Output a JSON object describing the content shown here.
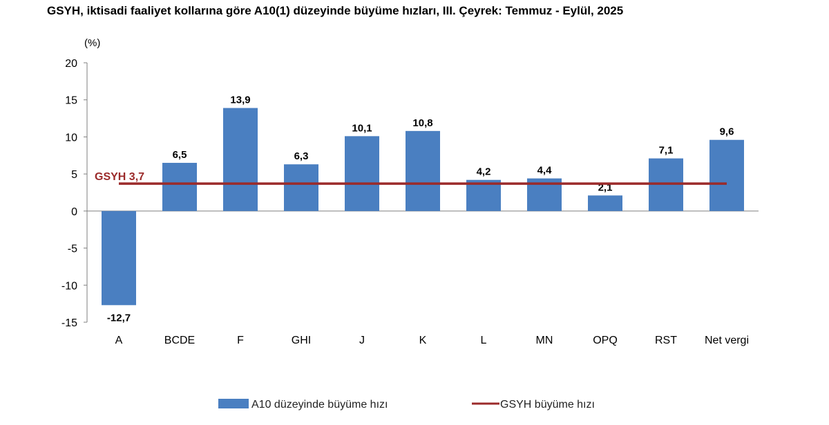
{
  "title": "GSYH, iktisadi faaliyet kollarına göre A10(1) düzeyinde büyüme hızları, III. Çeyrek: Temmuz - Eylül, 2025",
  "colors": {
    "bar": "#4a7fc1",
    "line": "#9b2a2a",
    "axis": "#7f7f7f"
  },
  "chart_data": {
    "type": "bar",
    "title": "GSYH, iktisadi faaliyet kollarına göre A10(1) düzeyinde büyüme hızları, III. Çeyrek: Temmuz - Eylül, 2025",
    "ylabel": "(%)",
    "ylim": [
      -15,
      20
    ],
    "yticks": [
      20,
      15,
      10,
      5,
      0,
      -5,
      -10,
      -15
    ],
    "categories": [
      "A",
      "BCDE",
      "F",
      "GHI",
      "J",
      "K",
      "L",
      "MN",
      "OPQ",
      "RST",
      "Net vergi"
    ],
    "series": [
      {
        "name": "A10 düzeyinde büyüme hızı",
        "values": [
          -12.7,
          6.5,
          13.9,
          6.3,
          10.1,
          10.8,
          4.2,
          4.4,
          2.1,
          7.1,
          9.6
        ],
        "labels": [
          "-12,7",
          "6,5",
          "13,9",
          "6,3",
          "10,1",
          "10,8",
          "4,2",
          "4,4",
          "2,1",
          "7,1",
          "9,6"
        ]
      },
      {
        "name": "GSYH büyüme hızı",
        "type": "line",
        "value": 3.7,
        "label": "GSYH 3,7"
      }
    ],
    "grid": false,
    "legend": "bottom"
  }
}
